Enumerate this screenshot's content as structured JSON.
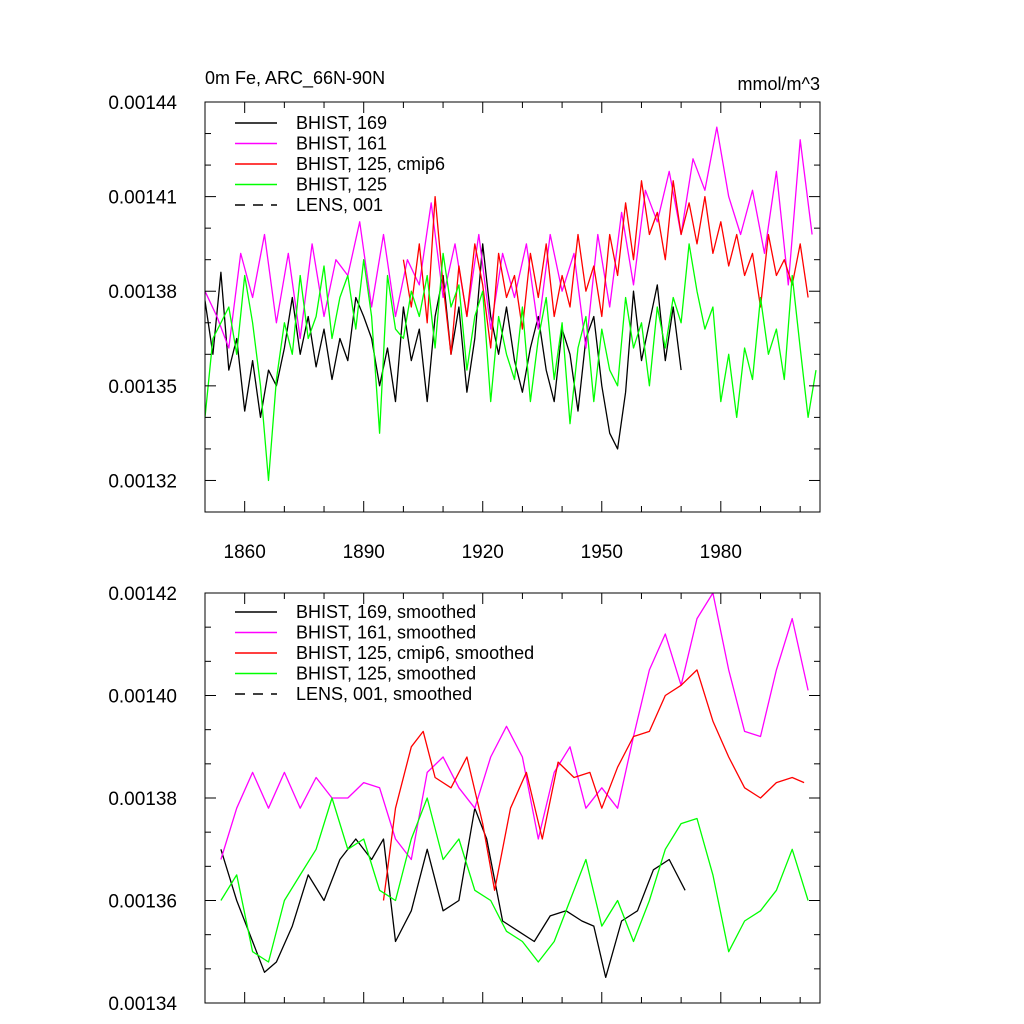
{
  "chart_data": [
    {
      "type": "line",
      "title": "0m Fe, ARC_66N-90N",
      "units": "mmol/m^3",
      "xlim": [
        1850,
        2005
      ],
      "ylim": [
        0.00131,
        0.00144
      ],
      "xticks": [
        1860,
        1890,
        1920,
        1950,
        1980
      ],
      "xtick_labels": [
        "1860",
        "1890",
        "1920",
        "1950",
        "1980"
      ],
      "yticks": [
        0.00132,
        0.00135,
        0.00138,
        0.00141,
        0.00144
      ],
      "ytick_labels": [
        "0.00132",
        "0.00135",
        "0.00138",
        "0.00141",
        "0.00144"
      ],
      "legend_position": "top-left",
      "series": [
        {
          "name": "BHIST, 169",
          "color": "#000000",
          "dash": "solid",
          "x": [
            1850,
            1852,
            1854,
            1856,
            1858,
            1860,
            1862,
            1864,
            1866,
            1868,
            1870,
            1872,
            1874,
            1876,
            1878,
            1880,
            1882,
            1884,
            1886,
            1888,
            1890,
            1892,
            1894,
            1896,
            1898,
            1900,
            1902,
            1904,
            1906,
            1908,
            1910,
            1912,
            1914,
            1916,
            1918,
            1920,
            1922,
            1924,
            1926,
            1928,
            1930,
            1932,
            1934,
            1936,
            1938,
            1940,
            1942,
            1944,
            1946,
            1948,
            1950,
            1952,
            1954,
            1956,
            1958,
            1960,
            1962,
            1964,
            1966,
            1968,
            1970
          ],
          "values": [
            0.001377,
            0.00136,
            0.001386,
            0.001355,
            0.001365,
            0.001342,
            0.001358,
            0.00134,
            0.001355,
            0.00135,
            0.001362,
            0.001378,
            0.00136,
            0.001372,
            0.001356,
            0.001368,
            0.001352,
            0.001365,
            0.001358,
            0.001378,
            0.001372,
            0.001365,
            0.00135,
            0.001362,
            0.001345,
            0.001375,
            0.001358,
            0.001368,
            0.001345,
            0.001372,
            0.001385,
            0.00136,
            0.001375,
            0.001348,
            0.001365,
            0.001395,
            0.001372,
            0.00136,
            0.001375,
            0.001358,
            0.001348,
            0.001362,
            0.001372,
            0.001355,
            0.001345,
            0.001368,
            0.00136,
            0.001342,
            0.001365,
            0.001372,
            0.00135,
            0.001335,
            0.00133,
            0.001348,
            0.00138,
            0.001358,
            0.00137,
            0.001382,
            0.001358,
            0.001375,
            0.001355
          ]
        },
        {
          "name": "BHIST, 161",
          "color": "#ff00ff",
          "dash": "solid",
          "x": [
            1850,
            1853,
            1856,
            1859,
            1862,
            1865,
            1868,
            1871,
            1874,
            1877,
            1880,
            1883,
            1886,
            1889,
            1892,
            1895,
            1898,
            1901,
            1904,
            1907,
            1910,
            1913,
            1916,
            1919,
            1922,
            1925,
            1928,
            1931,
            1934,
            1937,
            1940,
            1943,
            1946,
            1949,
            1952,
            1955,
            1958,
            1961,
            1964,
            1967,
            1970,
            1973,
            1976,
            1979,
            1982,
            1985,
            1988,
            1991,
            1994,
            1997,
            2000,
            2003
          ],
          "values": [
            0.00138,
            0.001372,
            0.001362,
            0.001392,
            0.001378,
            0.001398,
            0.00137,
            0.001392,
            0.001365,
            0.001395,
            0.001372,
            0.00139,
            0.001385,
            0.001402,
            0.001375,
            0.001398,
            0.001372,
            0.00139,
            0.001382,
            0.001408,
            0.001378,
            0.001395,
            0.001372,
            0.001398,
            0.001368,
            0.001392,
            0.001378,
            0.001395,
            0.001368,
            0.001398,
            0.00138,
            0.001392,
            0.001362,
            0.001398,
            0.001375,
            0.001405,
            0.001382,
            0.001412,
            0.001402,
            0.001418,
            0.001398,
            0.001422,
            0.001412,
            0.001432,
            0.00141,
            0.001398,
            0.001412,
            0.001392,
            0.001418,
            0.001382,
            0.001428,
            0.001398
          ]
        },
        {
          "name": "BHIST, 125, cmip6",
          "color": "#ff0000",
          "dash": "solid",
          "x": [
            1900,
            1902,
            1904,
            1906,
            1908,
            1910,
            1912,
            1914,
            1916,
            1918,
            1920,
            1922,
            1924,
            1926,
            1928,
            1930,
            1932,
            1934,
            1936,
            1938,
            1940,
            1942,
            1944,
            1946,
            1948,
            1950,
            1952,
            1954,
            1956,
            1958,
            1960,
            1962,
            1964,
            1966,
            1968,
            1970,
            1972,
            1974,
            1976,
            1978,
            1980,
            1982,
            1984,
            1986,
            1988,
            1990,
            1992,
            1994,
            1996,
            1998,
            2000,
            2002
          ],
          "values": [
            0.00139,
            0.001375,
            0.001395,
            0.00137,
            0.00141,
            0.001382,
            0.00136,
            0.001388,
            0.001372,
            0.001395,
            0.001382,
            0.001362,
            0.001392,
            0.001378,
            0.001385,
            0.001368,
            0.001392,
            0.001378,
            0.001395,
            0.001372,
            0.001385,
            0.001375,
            0.001398,
            0.00138,
            0.001388,
            0.001372,
            0.001398,
            0.001385,
            0.001408,
            0.00139,
            0.001415,
            0.001398,
            0.001405,
            0.00139,
            0.001415,
            0.001398,
            0.001408,
            0.001395,
            0.00141,
            0.001392,
            0.001402,
            0.001388,
            0.001398,
            0.001385,
            0.001392,
            0.001375,
            0.001398,
            0.001385,
            0.00139,
            0.001382,
            0.001395,
            0.001378
          ]
        },
        {
          "name": "BHIST, 125",
          "color": "#00ff00",
          "dash": "solid",
          "x": [
            1850,
            1852,
            1854,
            1856,
            1858,
            1860,
            1862,
            1864,
            1866,
            1868,
            1870,
            1872,
            1874,
            1876,
            1878,
            1880,
            1882,
            1884,
            1886,
            1888,
            1890,
            1892,
            1894,
            1896,
            1898,
            1900,
            1902,
            1904,
            1906,
            1908,
            1910,
            1912,
            1914,
            1916,
            1918,
            1920,
            1922,
            1924,
            1926,
            1928,
            1930,
            1932,
            1934,
            1936,
            1938,
            1940,
            1942,
            1944,
            1946,
            1948,
            1950,
            1952,
            1954,
            1956,
            1958,
            1960,
            1962,
            1964,
            1966,
            1968,
            1970,
            1972,
            1974,
            1976,
            1978,
            1980,
            1982,
            1984,
            1986,
            1988,
            1990,
            1992,
            1994,
            1996,
            1998,
            2000,
            2002,
            2004
          ],
          "values": [
            0.00134,
            0.001365,
            0.00137,
            0.001375,
            0.00136,
            0.001385,
            0.00137,
            0.00135,
            0.00132,
            0.001352,
            0.00137,
            0.00136,
            0.001385,
            0.001365,
            0.001372,
            0.001388,
            0.001365,
            0.001378,
            0.001385,
            0.001368,
            0.00139,
            0.001372,
            0.001335,
            0.001385,
            0.001368,
            0.001365,
            0.00138,
            0.001372,
            0.001385,
            0.001362,
            0.001392,
            0.001375,
            0.001382,
            0.001355,
            0.001372,
            0.00138,
            0.001345,
            0.001372,
            0.00136,
            0.001352,
            0.001375,
            0.001345,
            0.001365,
            0.001378,
            0.001352,
            0.00137,
            0.001338,
            0.001362,
            0.001372,
            0.001345,
            0.001368,
            0.001355,
            0.00135,
            0.001378,
            0.001362,
            0.00137,
            0.00135,
            0.001375,
            0.001362,
            0.001378,
            0.00137,
            0.001395,
            0.00138,
            0.001368,
            0.001375,
            0.001345,
            0.00136,
            0.00134,
            0.001362,
            0.001352,
            0.001378,
            0.00136,
            0.001368,
            0.001352,
            0.001385,
            0.001362,
            0.00134,
            0.001355
          ]
        }
      ]
    },
    {
      "type": "line",
      "title": "",
      "xlim": [
        1850,
        2005
      ],
      "ylim": [
        0.00134,
        0.00142
      ],
      "yticks": [
        0.00134,
        0.00136,
        0.00138,
        0.0014,
        0.00142
      ],
      "ytick_labels": [
        "0.00134",
        "0.00136",
        "0.00138",
        "0.00140",
        "0.00142"
      ],
      "legend_position": "top-left",
      "series": [
        {
          "name": "BHIST, 169, smoothed",
          "color": "#000000",
          "dash": "solid",
          "x": [
            1854,
            1858,
            1862,
            1865,
            1868,
            1872,
            1876,
            1880,
            1884,
            1888,
            1892,
            1895,
            1898,
            1902,
            1906,
            1910,
            1914,
            1918,
            1921,
            1925,
            1929,
            1933,
            1937,
            1941,
            1945,
            1948,
            1951,
            1955,
            1959,
            1963,
            1967,
            1971
          ],
          "values": [
            0.00137,
            0.00136,
            0.001352,
            0.001346,
            0.001348,
            0.001355,
            0.001365,
            0.00136,
            0.001368,
            0.001372,
            0.001368,
            0.001372,
            0.001352,
            0.001358,
            0.00137,
            0.001358,
            0.00136,
            0.001378,
            0.001372,
            0.001356,
            0.001354,
            0.001352,
            0.001357,
            0.001358,
            0.001356,
            0.001355,
            0.001345,
            0.001356,
            0.001358,
            0.001366,
            0.001368,
            0.001362
          ]
        },
        {
          "name": "BHIST, 161, smoothed",
          "color": "#ff00ff",
          "dash": "solid",
          "x": [
            1854,
            1858,
            1862,
            1866,
            1870,
            1874,
            1878,
            1882,
            1886,
            1890,
            1894,
            1898,
            1902,
            1906,
            1910,
            1914,
            1918,
            1922,
            1926,
            1930,
            1934,
            1938,
            1942,
            1946,
            1950,
            1954,
            1958,
            1962,
            1966,
            1970,
            1974,
            1978,
            1982,
            1986,
            1990,
            1994,
            1998,
            2002
          ],
          "values": [
            0.001368,
            0.001378,
            0.001385,
            0.001378,
            0.001385,
            0.001378,
            0.001384,
            0.00138,
            0.00138,
            0.001383,
            0.001382,
            0.001372,
            0.001368,
            0.001385,
            0.001388,
            0.001382,
            0.001378,
            0.001388,
            0.001394,
            0.001388,
            0.001372,
            0.001385,
            0.00139,
            0.001378,
            0.001382,
            0.001378,
            0.001392,
            0.001405,
            0.001412,
            0.001402,
            0.001415,
            0.00142,
            0.001405,
            0.001393,
            0.001392,
            0.001405,
            0.001415,
            0.001401
          ]
        },
        {
          "name": "BHIST, 125, cmip6, smoothed",
          "color": "#ff0000",
          "dash": "solid",
          "x": [
            1895,
            1898,
            1902,
            1905,
            1908,
            1912,
            1916,
            1920,
            1923,
            1927,
            1931,
            1935,
            1939,
            1943,
            1947,
            1950,
            1954,
            1958,
            1962,
            1966,
            1970,
            1974,
            1978,
            1982,
            1986,
            1990,
            1994,
            1998,
            2001
          ],
          "values": [
            0.00136,
            0.001378,
            0.00139,
            0.001393,
            0.001384,
            0.001382,
            0.001388,
            0.001375,
            0.001362,
            0.001378,
            0.001385,
            0.001372,
            0.001387,
            0.001384,
            0.001385,
            0.001378,
            0.001386,
            0.001392,
            0.001393,
            0.0014,
            0.001402,
            0.001405,
            0.001395,
            0.001388,
            0.001382,
            0.00138,
            0.001383,
            0.001384,
            0.001383
          ]
        },
        {
          "name": "BHIST, 125, smoothed",
          "color": "#00ff00",
          "dash": "solid",
          "x": [
            1854,
            1858,
            1862,
            1866,
            1870,
            1874,
            1878,
            1882,
            1886,
            1890,
            1894,
            1898,
            1902,
            1906,
            1910,
            1914,
            1918,
            1922,
            1926,
            1930,
            1934,
            1938,
            1942,
            1946,
            1950,
            1954,
            1958,
            1962,
            1966,
            1970,
            1974,
            1978,
            1982,
            1986,
            1990,
            1994,
            1998,
            2002
          ],
          "values": [
            0.00136,
            0.001365,
            0.00135,
            0.001348,
            0.00136,
            0.001365,
            0.00137,
            0.00138,
            0.00137,
            0.001372,
            0.001362,
            0.00136,
            0.001372,
            0.00138,
            0.001368,
            0.001372,
            0.001362,
            0.00136,
            0.001354,
            0.001352,
            0.001348,
            0.001352,
            0.00136,
            0.001368,
            0.001355,
            0.00136,
            0.001352,
            0.00136,
            0.00137,
            0.001375,
            0.001376,
            0.001365,
            0.00135,
            0.001356,
            0.001358,
            0.001362,
            0.00137,
            0.00136
          ]
        }
      ]
    }
  ],
  "legend": {
    "panel1": [
      {
        "label": "BHIST, 169",
        "color": "#000000",
        "dash": "solid"
      },
      {
        "label": "BHIST, 161",
        "color": "#ff00ff",
        "dash": "solid"
      },
      {
        "label": "BHIST, 125, cmip6",
        "color": "#ff0000",
        "dash": "solid"
      },
      {
        "label": "BHIST, 125",
        "color": "#00ff00",
        "dash": "solid"
      },
      {
        "label": "LENS, 001",
        "color": "#000000",
        "dash": "dashed"
      }
    ],
    "panel2": [
      {
        "label": "BHIST, 169, smoothed",
        "color": "#000000",
        "dash": "solid"
      },
      {
        "label": "BHIST, 161, smoothed",
        "color": "#ff00ff",
        "dash": "solid"
      },
      {
        "label": "BHIST, 125, cmip6, smoothed",
        "color": "#ff0000",
        "dash": "solid"
      },
      {
        "label": "BHIST, 125, smoothed",
        "color": "#00ff00",
        "dash": "solid"
      },
      {
        "label": "LENS, 001, smoothed",
        "color": "#000000",
        "dash": "dashed"
      }
    ]
  }
}
